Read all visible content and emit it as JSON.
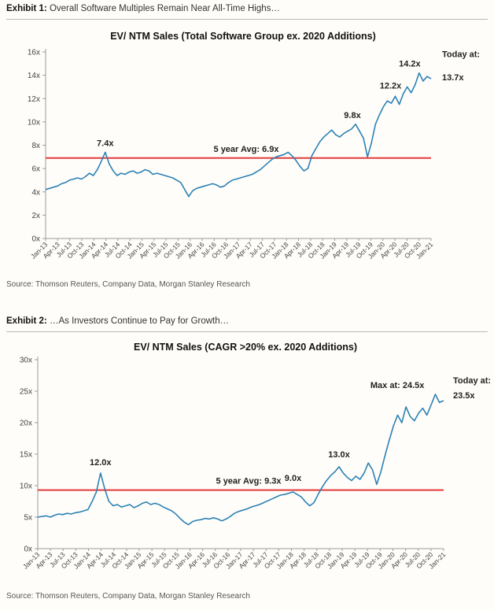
{
  "exhibits": [
    {
      "label": "Exhibit 1:",
      "caption": "Overall Software Multiples Remain Near All-Time Highs…",
      "source": "Source: Thomson Reuters, Company Data, Morgan Stanley Research"
    },
    {
      "label": "Exhibit 2:",
      "caption": "…As Investors Continue to Pay for Growth…",
      "source": "Source: Thomson Reuters, Company Data, Morgan Stanley Research"
    }
  ],
  "chart_data": [
    {
      "type": "line",
      "title": "EV/ NTM Sales (Total Software Group ex. 2020 Additions)",
      "xlabel": "",
      "ylabel": "",
      "ylim": [
        0,
        16
      ],
      "yticks": [
        0,
        2,
        4,
        6,
        8,
        10,
        12,
        14,
        16
      ],
      "ytick_labels": [
        "0x",
        "2x",
        "4x",
        "6x",
        "8x",
        "10x",
        "12x",
        "14x",
        "16x"
      ],
      "x_tick_labels": [
        "Jan-13",
        "Apr-13",
        "Jul-13",
        "Oct-13",
        "Jan-14",
        "Apr-14",
        "Jul-14",
        "Oct-14",
        "Jan-15",
        "Apr-15",
        "Jul-15",
        "Oct-15",
        "Jan-16",
        "Apr-16",
        "Jul-16",
        "Oct-16",
        "Jan-17",
        "Apr-17",
        "Jul-17",
        "Oct-17",
        "Jan-18",
        "Apr-18",
        "Jul-18",
        "Oct-18",
        "Jan-19",
        "Apr-19",
        "Jul-19",
        "Oct-19",
        "Jan-20",
        "Apr-20",
        "Jul-20",
        "Oct-20",
        "Jan-21"
      ],
      "line_color": "#2b82b6",
      "avg_color": "#e23b3b",
      "average": {
        "value": 6.9,
        "label": "5 year Avg: 6.9x"
      },
      "series": [
        {
          "x": [
            0,
            1,
            2,
            3,
            4,
            5,
            6,
            7,
            8,
            9,
            10,
            11,
            12,
            13,
            14,
            15,
            16,
            17,
            18,
            19,
            20,
            21,
            22,
            23,
            24,
            25,
            26,
            27,
            28,
            29,
            30,
            31,
            32,
            33,
            34,
            35,
            36,
            37,
            38,
            39,
            40,
            41,
            42,
            43,
            44,
            45,
            46,
            47,
            48,
            49,
            50,
            51,
            52,
            53,
            54,
            55,
            56,
            57,
            58,
            59,
            60,
            61,
            62,
            63,
            64,
            65,
            66,
            67,
            68,
            69,
            70,
            71,
            72,
            73,
            74,
            75,
            76,
            77,
            78,
            79,
            80,
            81,
            82,
            83,
            84,
            85,
            86,
            87,
            88,
            89,
            90,
            91,
            92,
            93,
            94,
            95,
            96,
            97
          ],
          "values": [
            4.2,
            4.3,
            4.4,
            4.5,
            4.7,
            4.8,
            5.0,
            5.1,
            5.2,
            5.1,
            5.3,
            5.6,
            5.4,
            5.9,
            6.6,
            7.4,
            6.4,
            5.8,
            5.4,
            5.6,
            5.5,
            5.7,
            5.8,
            5.6,
            5.7,
            5.9,
            5.8,
            5.5,
            5.6,
            5.5,
            5.4,
            5.3,
            5.2,
            5.0,
            4.8,
            4.2,
            3.6,
            4.1,
            4.3,
            4.4,
            4.5,
            4.6,
            4.7,
            4.6,
            4.4,
            4.5,
            4.8,
            5.0,
            5.1,
            5.2,
            5.3,
            5.4,
            5.5,
            5.7,
            5.9,
            6.2,
            6.5,
            6.8,
            7.0,
            7.1,
            7.2,
            7.4,
            7.1,
            6.7,
            6.2,
            5.8,
            6.0,
            7.1,
            7.7,
            8.3,
            8.7,
            9.0,
            9.3,
            8.9,
            8.7,
            9.0,
            9.2,
            9.4,
            9.8,
            9.2,
            8.6,
            7.0,
            8.2,
            9.8,
            10.6,
            11.3,
            11.8,
            11.6,
            12.2,
            11.5,
            12.4,
            13.0,
            12.5,
            13.2,
            14.2,
            13.5,
            13.9,
            13.7
          ]
        }
      ],
      "annotations": [
        {
          "label": "7.4x",
          "x": 15,
          "y": 7.4
        },
        {
          "label": "9.8x",
          "x": 78,
          "y": 9.8
        },
        {
          "label": "12.2x",
          "x": 88,
          "y": 12.2
        },
        {
          "label": "14.2x",
          "x": 94,
          "y": 14.2
        },
        {
          "label": "Today at:",
          "x": 97,
          "y": 14.6
        },
        {
          "label": "13.7x",
          "x": 97,
          "y": 13.7
        }
      ]
    },
    {
      "type": "line",
      "title": "EV/ NTM Sales (CAGR >20% ex. 2020 Additions)",
      "xlabel": "",
      "ylabel": "",
      "ylim": [
        0,
        30
      ],
      "yticks": [
        0,
        5,
        10,
        15,
        20,
        25,
        30
      ],
      "ytick_labels": [
        "0x",
        "5x",
        "10x",
        "15x",
        "20x",
        "25x",
        "30x"
      ],
      "x_tick_labels": [
        "Jan-13",
        "Apr-13",
        "Jul-13",
        "Oct-13",
        "Jan-14",
        "Apr-14",
        "Jul-14",
        "Oct-14",
        "Jan-15",
        "Apr-15",
        "Jul-15",
        "Oct-15",
        "Jan-16",
        "Apr-16",
        "Jul-16",
        "Oct-16",
        "Jan-17",
        "Apr-17",
        "Jul-17",
        "Oct-17",
        "Jan-18",
        "Apr-18",
        "Jul-18",
        "Oct-18",
        "Jan-19",
        "Apr-19",
        "Jul-19",
        "Oct-19",
        "Jan-20",
        "Apr-20",
        "Jul-20",
        "Oct-20",
        "Jan-21"
      ],
      "line_color": "#2b82b6",
      "avg_color": "#e23b3b",
      "average": {
        "value": 9.3,
        "label": "5 year Avg: 9.3x"
      },
      "series": [
        {
          "x": [
            0,
            1,
            2,
            3,
            4,
            5,
            6,
            7,
            8,
            9,
            10,
            11,
            12,
            13,
            14,
            15,
            16,
            17,
            18,
            19,
            20,
            21,
            22,
            23,
            24,
            25,
            26,
            27,
            28,
            29,
            30,
            31,
            32,
            33,
            34,
            35,
            36,
            37,
            38,
            39,
            40,
            41,
            42,
            43,
            44,
            45,
            46,
            47,
            48,
            49,
            50,
            51,
            52,
            53,
            54,
            55,
            56,
            57,
            58,
            59,
            60,
            61,
            62,
            63,
            64,
            65,
            66,
            67,
            68,
            69,
            70,
            71,
            72,
            73,
            74,
            75,
            76,
            77,
            78,
            79,
            80,
            81,
            82,
            83,
            84,
            85,
            86,
            87,
            88,
            89,
            90,
            91,
            92,
            93,
            94,
            95,
            96,
            97
          ],
          "values": [
            5.0,
            5.1,
            5.2,
            5.0,
            5.3,
            5.5,
            5.4,
            5.6,
            5.5,
            5.7,
            5.8,
            6.0,
            6.2,
            7.5,
            9.0,
            12.0,
            9.5,
            7.5,
            6.8,
            7.0,
            6.6,
            6.8,
            7.0,
            6.5,
            6.8,
            7.2,
            7.4,
            7.0,
            7.2,
            7.0,
            6.6,
            6.3,
            6.0,
            5.5,
            4.8,
            4.2,
            3.8,
            4.3,
            4.5,
            4.6,
            4.8,
            4.7,
            4.9,
            4.7,
            4.4,
            4.7,
            5.1,
            5.6,
            5.9,
            6.1,
            6.3,
            6.6,
            6.8,
            7.0,
            7.3,
            7.6,
            7.9,
            8.2,
            8.5,
            8.6,
            8.8,
            9.0,
            8.6,
            8.2,
            7.4,
            6.8,
            7.3,
            8.6,
            9.8,
            10.8,
            11.6,
            12.2,
            13.0,
            12.0,
            11.3,
            10.8,
            11.5,
            11.0,
            12.0,
            13.6,
            12.5,
            10.2,
            12.2,
            14.8,
            17.2,
            19.5,
            21.2,
            20.0,
            22.5,
            21.0,
            20.3,
            21.5,
            22.3,
            21.2,
            22.8,
            24.5,
            23.2,
            23.5
          ]
        }
      ],
      "annotations": [
        {
          "label": "12.0x",
          "x": 15,
          "y": 12.0
        },
        {
          "label": "9.0x",
          "x": 61,
          "y": 9.0
        },
        {
          "label": "13.0x",
          "x": 72,
          "y": 13.0
        },
        {
          "label": "Max at: 24.5x",
          "x": 95,
          "y": 24.5
        },
        {
          "label": "Today at:",
          "x": 97,
          "y": 24.0
        },
        {
          "label": "23.5x",
          "x": 97,
          "y": 23.5
        }
      ]
    }
  ]
}
